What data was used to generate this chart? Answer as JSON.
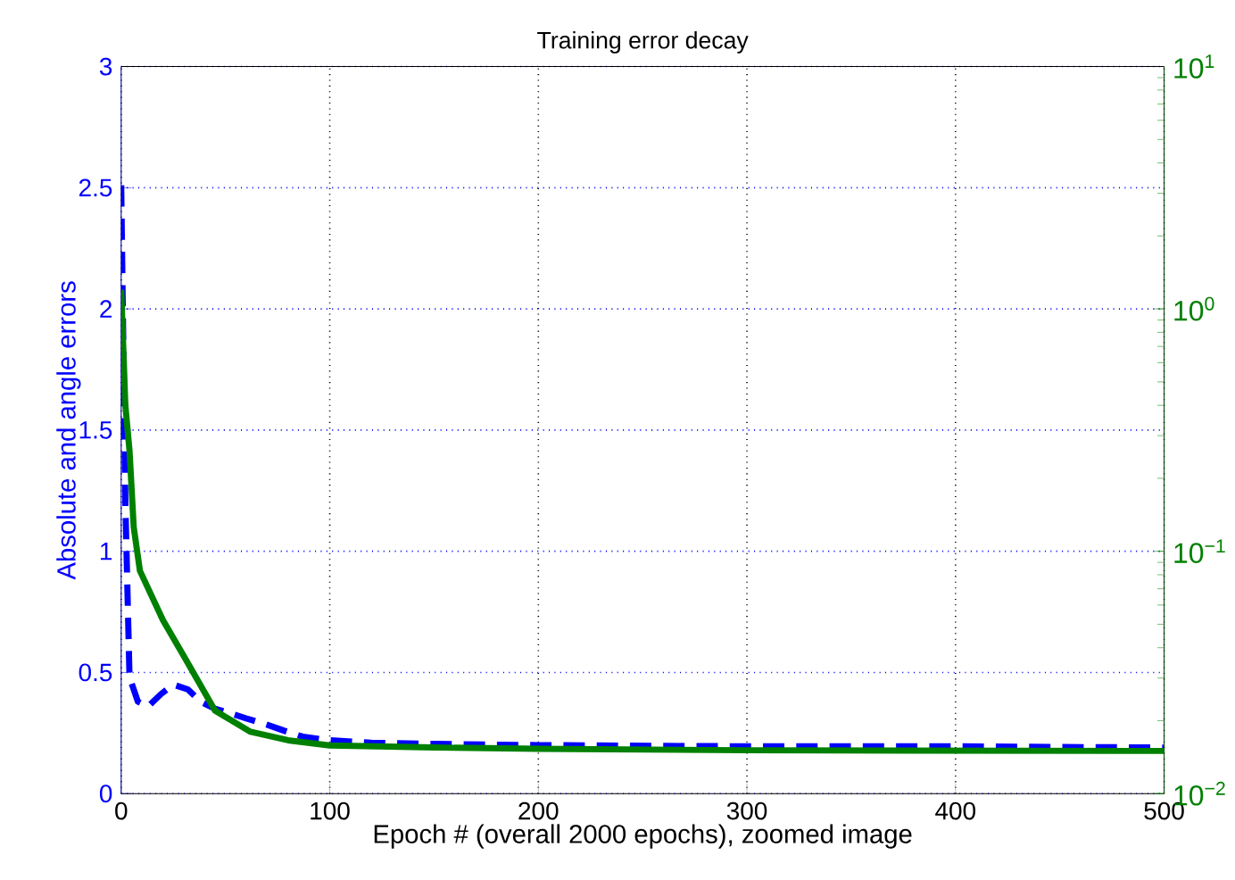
{
  "chart_data": {
    "type": "line",
    "title": "Training error decay",
    "xlabel": "Epoch # (overall 2000 epochs), zoomed image",
    "ylabel": "Absolute and angle errors",
    "xlim": [
      0,
      500
    ],
    "xticks": [
      0,
      100,
      200,
      300,
      400,
      500
    ],
    "ylim": [
      0,
      3
    ],
    "yticks": [
      0,
      0.5,
      1,
      1.5,
      2,
      2.5,
      3
    ],
    "y2lim": [
      0.01,
      10
    ],
    "y2ticks": [
      {
        "value": 0.01,
        "label": "10$^{−2}$"
      },
      {
        "value": 0.1,
        "label": "10$^{−1}$"
      },
      {
        "value": 1,
        "label": "10$^{0}$"
      },
      {
        "value": 10,
        "label": "10$^{1}$"
      }
    ],
    "log": "y2",
    "grid": true,
    "series": [
      {
        "color": "#0000ff",
        "line_style": "dashed",
        "x": [
          0,
          2,
          4,
          8,
          13,
          19,
          25,
          32,
          38,
          45,
          53,
          60,
          68,
          78,
          87,
          100,
          120,
          150,
          200,
          300,
          400,
          500
        ],
        "values": [
          2.51,
          1.2,
          0.48,
          0.38,
          0.36,
          0.41,
          0.45,
          0.43,
          0.38,
          0.35,
          0.33,
          0.31,
          0.29,
          0.26,
          0.235,
          0.22,
          0.21,
          0.205,
          0.2,
          0.195,
          0.195,
          0.19
        ]
      },
      {
        "color": "#008000",
        "line_style": "solid",
        "axis": "y2",
        "x": [
          0,
          2,
          4,
          6,
          9,
          20,
          30,
          45,
          62,
          80,
          100,
          150,
          200,
          300,
          500
        ],
        "values": [
          1.2,
          0.4,
          0.26,
          0.126,
          0.083,
          0.052,
          0.037,
          0.022,
          0.018,
          0.0166,
          0.0158,
          0.0155,
          0.0153,
          0.0151,
          0.015
        ]
      }
    ]
  }
}
